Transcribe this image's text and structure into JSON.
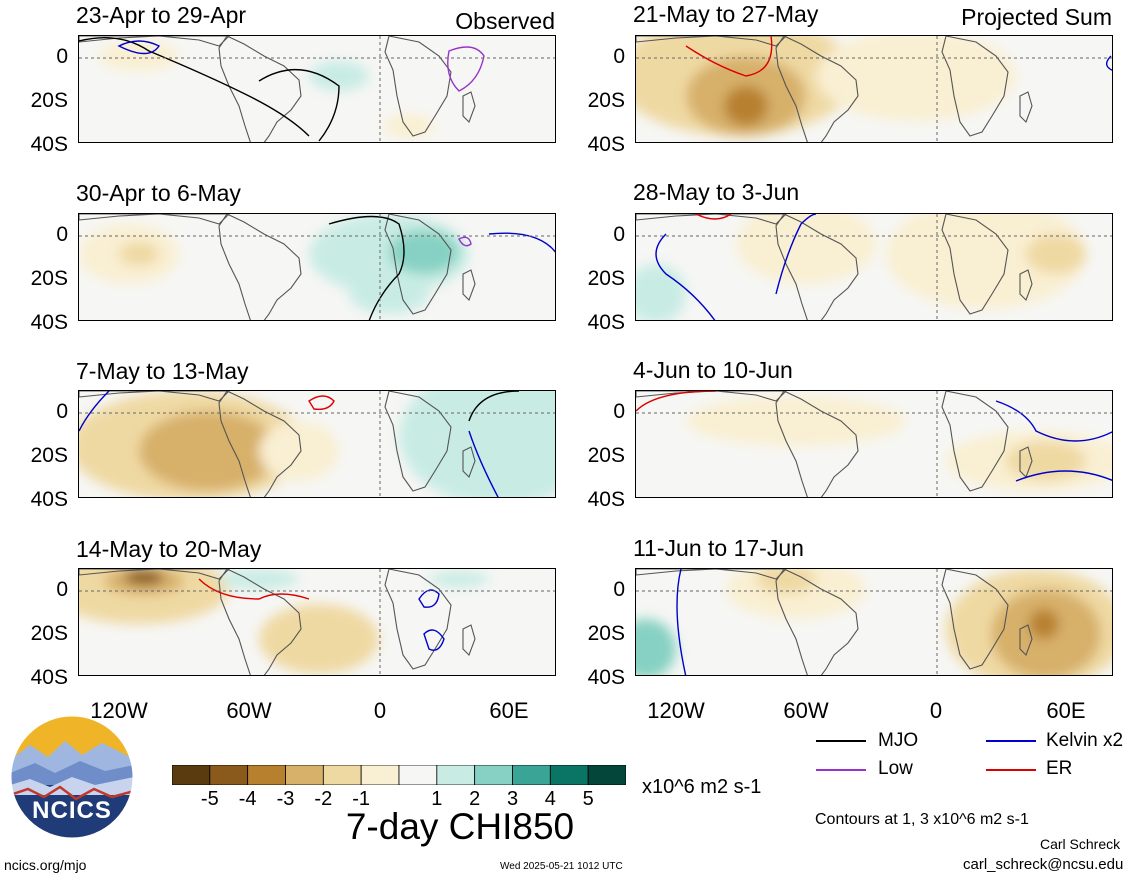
{
  "tags": {
    "observed": "Observed",
    "projected": "Projected Sum"
  },
  "panels": [
    {
      "title": "23-Apr to 29-Apr",
      "group": "observed"
    },
    {
      "title": "21-May to 27-May",
      "group": "projected"
    },
    {
      "title": "30-Apr to 6-May",
      "group": "observed"
    },
    {
      "title": "28-May to 3-Jun",
      "group": "projected"
    },
    {
      "title": "7-May to 13-May",
      "group": "observed"
    },
    {
      "title": "4-Jun to 10-Jun",
      "group": "projected"
    },
    {
      "title": "14-May to 20-May",
      "group": "observed"
    },
    {
      "title": "11-Jun to 17-Jun",
      "group": "projected"
    }
  ],
  "lat_labels": [
    "0",
    "20S",
    "40S"
  ],
  "lon_labels": [
    "120W",
    "60W",
    "0",
    "60E"
  ],
  "colorbar": {
    "colors": [
      "#5a3b10",
      "#8a5a1c",
      "#b7802f",
      "#d7b06a",
      "#efd9a3",
      "#f9efd2",
      "#f6f6f4",
      "#c8ece4",
      "#86d1c3",
      "#3aa596",
      "#0b7565",
      "#05463a"
    ],
    "ticks": [
      "-5",
      "-4",
      "-3",
      "-2",
      "-1",
      "1",
      "2",
      "3",
      "4",
      "5"
    ],
    "units": "x10^6 m2 s-1",
    "title": "7-day CHI850"
  },
  "legend": {
    "mjo": "MJO",
    "kelvin": "Kelvin x2",
    "low": "Low",
    "er": "ER",
    "colors": {
      "mjo": "#000000",
      "kelvin": "#0000cc",
      "low": "#9933cc",
      "er": "#dd0000"
    },
    "contours_note": "Contours at 1, 3 x10^6 m2 s-1"
  },
  "logo": {
    "text": "NCICS"
  },
  "footer": {
    "url": "ncics.org/mjo",
    "timestamp": "Wed 2025-05-21 1012 UTC",
    "author": "Carl Schreck",
    "email": "carl_schreck@ncsu.edu"
  }
}
